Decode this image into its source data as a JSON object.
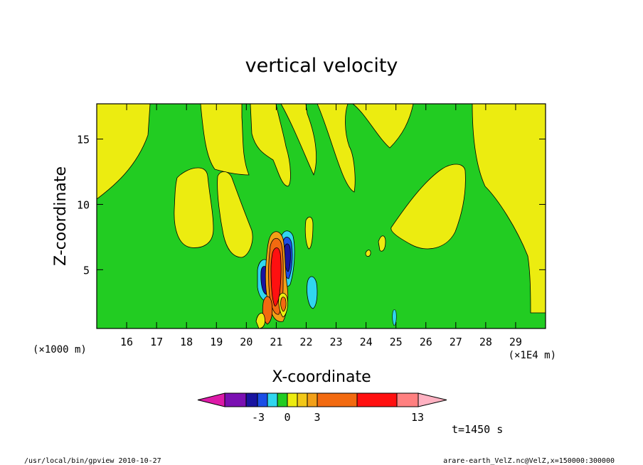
{
  "chart_data": {
    "type": "contour",
    "title": "vertical velocity",
    "xlabel": "X-coordinate",
    "ylabel": "Z-coordinate",
    "x_units_left": "(×1000 m)",
    "x_units_right": "(×1E4 m)",
    "x_ticks": [
      "16",
      "17",
      "18",
      "19",
      "20",
      "21",
      "22",
      "23",
      "24",
      "25",
      "26",
      "27",
      "28",
      "29"
    ],
    "x_tick_values": [
      16,
      17,
      18,
      19,
      20,
      21,
      22,
      23,
      24,
      25,
      26,
      27,
      28,
      29
    ],
    "xlim": [
      15,
      30
    ],
    "y_ticks": [
      "5",
      "10",
      "15"
    ],
    "y_tick_values": [
      5,
      10,
      15
    ],
    "ylim": [
      0.5,
      17.7
    ],
    "time_label": "t=1450 s",
    "colorbar": {
      "colors": [
        "#dd1aa8",
        "#7b10b2",
        "#1a14a0",
        "#1a4ee6",
        "#30d6ef",
        "#22cc22",
        "#ecec10",
        "#f2c818",
        "#f2a018",
        "#f26a10",
        "#ff1010",
        "#ff8080",
        "#ffb2c2"
      ],
      "labels": [
        "-3",
        "0",
        "3",
        "13"
      ]
    },
    "field_colors": {
      "near_zero": "#22cc22",
      "weak_positive": "#ecec10",
      "weak_negative": "#30d6ef",
      "strong_negative": "#1a14a0",
      "mid_negative": "#1a4ee6",
      "mid_positive": "#f26a10",
      "strong_positive": "#ff1010"
    },
    "footer_left": "/usr/local/bin/gpview  2010-10-27",
    "footer_right": "arare-earth_VelZ.nc@VelZ,x=150000:300000"
  }
}
